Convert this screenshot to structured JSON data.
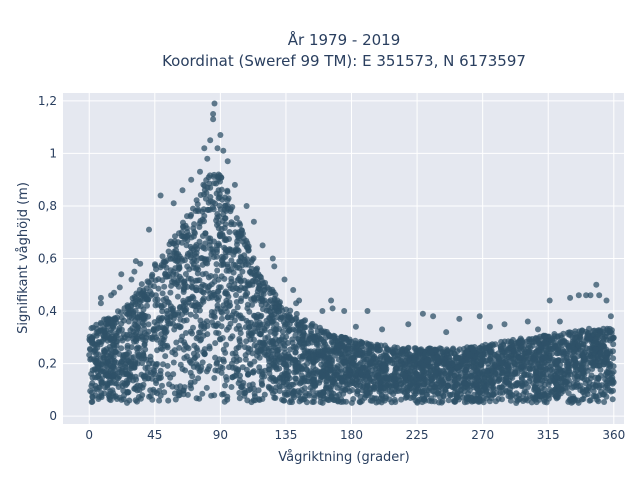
{
  "chart_data": {
    "type": "scatter",
    "title_lines": [
      "År 1979 - 2019",
      "Koordinat (Sweref 99 TM): E 351573, N 6173597"
    ],
    "xlabel": "Vågriktning (grader)",
    "ylabel": "Signifikant våghöjd (m)",
    "xlim": [
      -18,
      367
    ],
    "ylim": [
      -0.03,
      1.23
    ],
    "x_ticks": [
      0,
      45,
      90,
      135,
      180,
      225,
      270,
      315,
      360
    ],
    "x_tick_labels": [
      "0",
      "45",
      "90",
      "135",
      "180",
      "225",
      "270",
      "315",
      "360"
    ],
    "y_ticks": [
      0,
      0.2,
      0.4,
      0.6,
      0.8,
      1,
      1.2
    ],
    "y_tick_labels": [
      "0",
      "0,2",
      "0,4",
      "0,6",
      "0,8",
      "1",
      "1,2"
    ],
    "grid": true,
    "marker_color": "#2f5168",
    "plot_background": "#e5e8f0",
    "series": [
      {
        "x_range": [
          0,
          360
        ],
        "band_min": 0.05,
        "envelope": {
          "x": [
            0,
            10,
            20,
            30,
            45,
            60,
            75,
            85,
            90,
            100,
            110,
            120,
            135,
            150,
            165,
            180,
            200,
            225,
            250,
            270,
            300,
            330,
            350,
            360
          ],
          "y": [
            0.33,
            0.37,
            0.4,
            0.45,
            0.58,
            0.7,
            0.85,
            0.95,
            0.93,
            0.78,
            0.64,
            0.52,
            0.42,
            0.36,
            0.32,
            0.29,
            0.27,
            0.26,
            0.26,
            0.27,
            0.3,
            0.32,
            0.34,
            0.33
          ]
        },
        "outliers": [
          {
            "x": 86,
            "y": 1.19
          },
          {
            "x": 85,
            "y": 1.15
          },
          {
            "x": 85,
            "y": 1.13
          },
          {
            "x": 90,
            "y": 1.07
          },
          {
            "x": 83,
            "y": 1.05
          },
          {
            "x": 79,
            "y": 1.02
          },
          {
            "x": 88,
            "y": 1.02
          },
          {
            "x": 92,
            "y": 1.01
          },
          {
            "x": 81,
            "y": 0.98
          },
          {
            "x": 76,
            "y": 0.93
          },
          {
            "x": 95,
            "y": 0.97
          },
          {
            "x": 70,
            "y": 0.9
          },
          {
            "x": 100,
            "y": 0.88
          },
          {
            "x": 64,
            "y": 0.86
          },
          {
            "x": 108,
            "y": 0.8
          },
          {
            "x": 49,
            "y": 0.84
          },
          {
            "x": 58,
            "y": 0.81
          },
          {
            "x": 113,
            "y": 0.74
          },
          {
            "x": 41,
            "y": 0.71
          },
          {
            "x": 119,
            "y": 0.65
          },
          {
            "x": 32,
            "y": 0.59
          },
          {
            "x": 35,
            "y": 0.58
          },
          {
            "x": 126,
            "y": 0.6
          },
          {
            "x": 127,
            "y": 0.57
          },
          {
            "x": 31,
            "y": 0.55
          },
          {
            "x": 22,
            "y": 0.54
          },
          {
            "x": 29,
            "y": 0.52
          },
          {
            "x": 134,
            "y": 0.52
          },
          {
            "x": 140,
            "y": 0.48
          },
          {
            "x": 21,
            "y": 0.49
          },
          {
            "x": 17,
            "y": 0.47
          },
          {
            "x": 15,
            "y": 0.46
          },
          {
            "x": 8,
            "y": 0.45
          },
          {
            "x": 8,
            "y": 0.43
          },
          {
            "x": 144,
            "y": 0.44
          },
          {
            "x": 142,
            "y": 0.43
          },
          {
            "x": 166,
            "y": 0.44
          },
          {
            "x": 167,
            "y": 0.41
          },
          {
            "x": 160,
            "y": 0.4
          },
          {
            "x": 175,
            "y": 0.4
          },
          {
            "x": 191,
            "y": 0.4
          },
          {
            "x": 229,
            "y": 0.39
          },
          {
            "x": 236,
            "y": 0.38
          },
          {
            "x": 219,
            "y": 0.35
          },
          {
            "x": 254,
            "y": 0.37
          },
          {
            "x": 268,
            "y": 0.38
          },
          {
            "x": 285,
            "y": 0.35
          },
          {
            "x": 301,
            "y": 0.36
          },
          {
            "x": 308,
            "y": 0.33
          },
          {
            "x": 323,
            "y": 0.36
          },
          {
            "x": 330,
            "y": 0.45
          },
          {
            "x": 336,
            "y": 0.46
          },
          {
            "x": 341,
            "y": 0.46
          },
          {
            "x": 344,
            "y": 0.46
          },
          {
            "x": 348,
            "y": 0.5
          },
          {
            "x": 350,
            "y": 0.46
          },
          {
            "x": 355,
            "y": 0.44
          },
          {
            "x": 358,
            "y": 0.38
          },
          {
            "x": 316,
            "y": 0.44
          },
          {
            "x": 245,
            "y": 0.32
          },
          {
            "x": 275,
            "y": 0.34
          },
          {
            "x": 183,
            "y": 0.34
          },
          {
            "x": 201,
            "y": 0.33
          }
        ]
      }
    ]
  }
}
